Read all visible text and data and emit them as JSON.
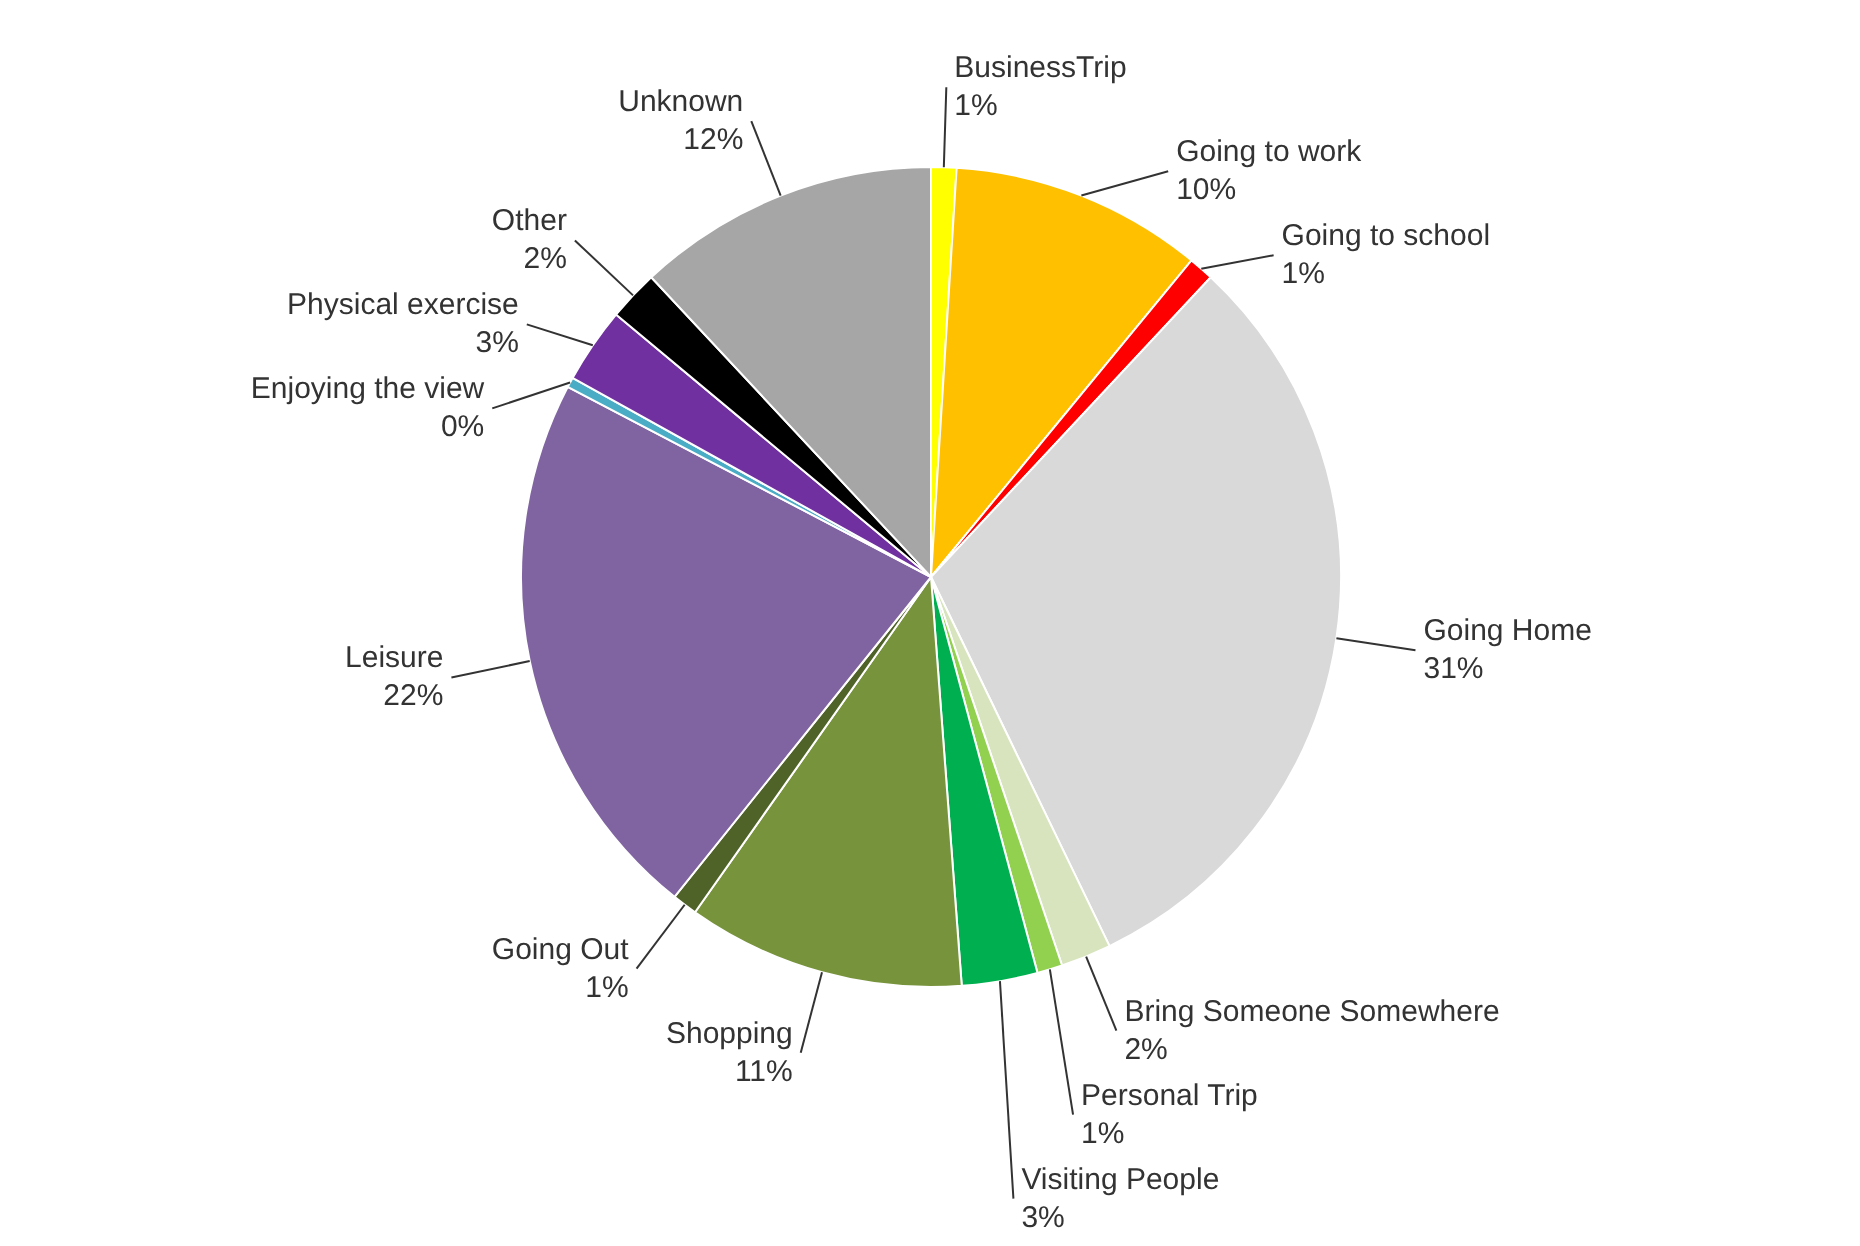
{
  "chart_data": {
    "type": "pie",
    "categories": [
      "BusinessTrip",
      "Going to work",
      "Going to school",
      "Going Home",
      "Bring Someone Somewhere",
      "Personal Trip",
      "Visiting People",
      "Shopping",
      "Going Out",
      "Leisure",
      "Enjoying the view",
      "Physical exercise",
      "Other",
      "Unknown"
    ],
    "values": [
      1,
      10,
      1,
      31,
      2,
      1,
      3,
      11,
      1,
      22,
      0.4,
      3,
      2,
      12
    ],
    "value_labels": [
      "1%",
      "10%",
      "1%",
      "31%",
      "2%",
      "1%",
      "3%",
      "11%",
      "1%",
      "22%",
      "0%",
      "3%",
      "2%",
      "12%"
    ],
    "colors": [
      "#ffff00",
      "#ffc000",
      "#ff0000",
      "#d9d9d9",
      "#d7e4bd",
      "#92d050",
      "#00b050",
      "#77933c",
      "#4f6228",
      "#8064a2",
      "#4bacc6",
      "#7030a0",
      "#000000",
      "#a6a6a6"
    ],
    "legend": false
  }
}
